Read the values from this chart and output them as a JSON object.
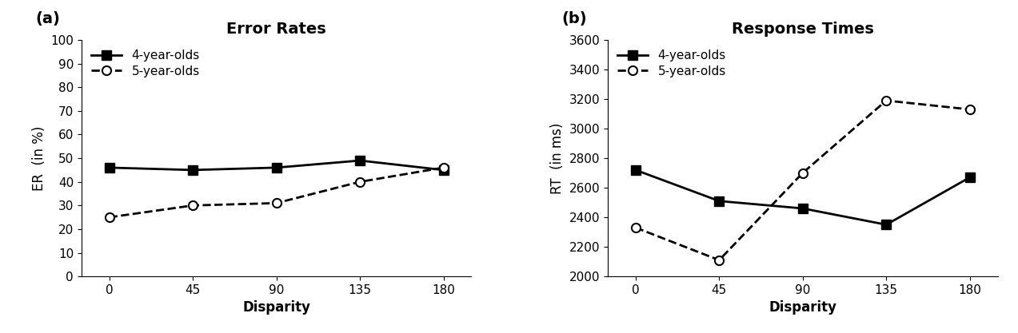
{
  "disparity": [
    0,
    45,
    90,
    135,
    180
  ],
  "er_4year": [
    46,
    45,
    46,
    49,
    45
  ],
  "er_5year": [
    25,
    30,
    31,
    40,
    46
  ],
  "rt_4year": [
    2720,
    2510,
    2460,
    2350,
    2670
  ],
  "rt_5year": [
    2330,
    2110,
    2700,
    3190,
    3130
  ],
  "er_ylim": [
    0,
    100
  ],
  "er_yticks": [
    0,
    10,
    20,
    30,
    40,
    50,
    60,
    70,
    80,
    90,
    100
  ],
  "rt_ylim": [
    2000,
    3600
  ],
  "rt_yticks": [
    2000,
    2200,
    2400,
    2600,
    2800,
    3000,
    3200,
    3400,
    3600
  ],
  "xticks": [
    0,
    45,
    90,
    135,
    180
  ],
  "title_a": "Error Rates",
  "title_b": "Response Times",
  "xlabel": "Disparity",
  "ylabel_a": "ER  (in %)",
  "ylabel_b": "RT  (in ms)",
  "label_4year": "4-year-olds",
  "label_5year": "5-year-olds",
  "panel_a": "(a)",
  "panel_b": "(b)",
  "line_color": "#000000",
  "marker_4year": "s",
  "marker_5year": "o",
  "markersize": 8,
  "linewidth": 2,
  "title_fontsize": 14,
  "label_fontsize": 12,
  "tick_fontsize": 11,
  "legend_fontsize": 11,
  "panel_fontsize": 14,
  "fig_width": 12.73,
  "fig_height": 4.17,
  "fig_dpi": 100
}
